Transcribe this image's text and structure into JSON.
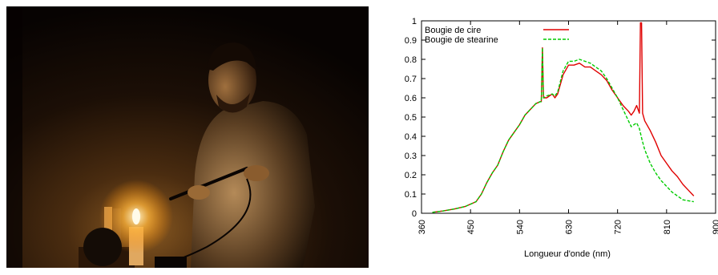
{
  "chart_data": {
    "type": "line",
    "xlabel": "Longueur d'onde (nm)",
    "ylabel": "",
    "xlim": [
      360,
      900
    ],
    "ylim": [
      0,
      1
    ],
    "x_ticks": [
      "360",
      "450",
      "540",
      "630",
      "720",
      "810",
      "900"
    ],
    "y_ticks": [
      "0",
      "0.1",
      "0.2",
      "0.3",
      "0.4",
      "0.5",
      "0.6",
      "0.7",
      "0.8",
      "0.9",
      "1"
    ],
    "legend_position": "top-left",
    "grid": false,
    "series": [
      {
        "name": "Bougie de cire",
        "color": "#e00000",
        "dash": "solid",
        "points": [
          [
            380,
            0.005
          ],
          [
            400,
            0.012
          ],
          [
            420,
            0.022
          ],
          [
            440,
            0.035
          ],
          [
            460,
            0.06
          ],
          [
            470,
            0.1
          ],
          [
            480,
            0.16
          ],
          [
            490,
            0.21
          ],
          [
            500,
            0.25
          ],
          [
            510,
            0.32
          ],
          [
            520,
            0.38
          ],
          [
            530,
            0.42
          ],
          [
            540,
            0.46
          ],
          [
            550,
            0.51
          ],
          [
            560,
            0.54
          ],
          [
            570,
            0.57
          ],
          [
            578,
            0.58
          ],
          [
            580,
            0.58
          ],
          [
            582,
            0.86
          ],
          [
            584,
            0.6
          ],
          [
            590,
            0.6
          ],
          [
            600,
            0.62
          ],
          [
            605,
            0.6
          ],
          [
            610,
            0.62
          ],
          [
            620,
            0.72
          ],
          [
            630,
            0.77
          ],
          [
            640,
            0.77
          ],
          [
            650,
            0.78
          ],
          [
            660,
            0.76
          ],
          [
            670,
            0.76
          ],
          [
            680,
            0.74
          ],
          [
            690,
            0.72
          ],
          [
            700,
            0.69
          ],
          [
            710,
            0.64
          ],
          [
            720,
            0.6
          ],
          [
            730,
            0.56
          ],
          [
            740,
            0.53
          ],
          [
            745,
            0.51
          ],
          [
            750,
            0.53
          ],
          [
            755,
            0.56
          ],
          [
            760,
            0.52
          ],
          [
            762,
            0.99
          ],
          [
            764,
            0.99
          ],
          [
            766,
            0.52
          ],
          [
            770,
            0.48
          ],
          [
            780,
            0.43
          ],
          [
            790,
            0.37
          ],
          [
            800,
            0.3
          ],
          [
            810,
            0.26
          ],
          [
            820,
            0.22
          ],
          [
            830,
            0.19
          ],
          [
            840,
            0.15
          ],
          [
            850,
            0.12
          ],
          [
            860,
            0.09
          ]
        ]
      },
      {
        "name": "Bougie de stearine",
        "color": "#00cc00",
        "dash": "dashed",
        "points": [
          [
            380,
            0.005
          ],
          [
            400,
            0.012
          ],
          [
            420,
            0.022
          ],
          [
            440,
            0.035
          ],
          [
            460,
            0.06
          ],
          [
            470,
            0.1
          ],
          [
            480,
            0.16
          ],
          [
            490,
            0.21
          ],
          [
            500,
            0.25
          ],
          [
            510,
            0.32
          ],
          [
            520,
            0.38
          ],
          [
            530,
            0.42
          ],
          [
            540,
            0.46
          ],
          [
            550,
            0.51
          ],
          [
            560,
            0.54
          ],
          [
            570,
            0.57
          ],
          [
            578,
            0.58
          ],
          [
            580,
            0.58
          ],
          [
            582,
            0.86
          ],
          [
            584,
            0.6
          ],
          [
            590,
            0.61
          ],
          [
            600,
            0.62
          ],
          [
            605,
            0.61
          ],
          [
            610,
            0.63
          ],
          [
            620,
            0.74
          ],
          [
            630,
            0.79
          ],
          [
            640,
            0.79
          ],
          [
            650,
            0.8
          ],
          [
            660,
            0.79
          ],
          [
            670,
            0.78
          ],
          [
            680,
            0.76
          ],
          [
            690,
            0.74
          ],
          [
            700,
            0.7
          ],
          [
            710,
            0.65
          ],
          [
            720,
            0.6
          ],
          [
            730,
            0.54
          ],
          [
            740,
            0.48
          ],
          [
            745,
            0.45
          ],
          [
            750,
            0.46
          ],
          [
            755,
            0.47
          ],
          [
            760,
            0.44
          ],
          [
            765,
            0.38
          ],
          [
            770,
            0.33
          ],
          [
            780,
            0.26
          ],
          [
            790,
            0.21
          ],
          [
            800,
            0.17
          ],
          [
            810,
            0.14
          ],
          [
            820,
            0.11
          ],
          [
            830,
            0.09
          ],
          [
            840,
            0.07
          ],
          [
            850,
            0.065
          ],
          [
            860,
            0.06
          ]
        ]
      }
    ]
  }
}
